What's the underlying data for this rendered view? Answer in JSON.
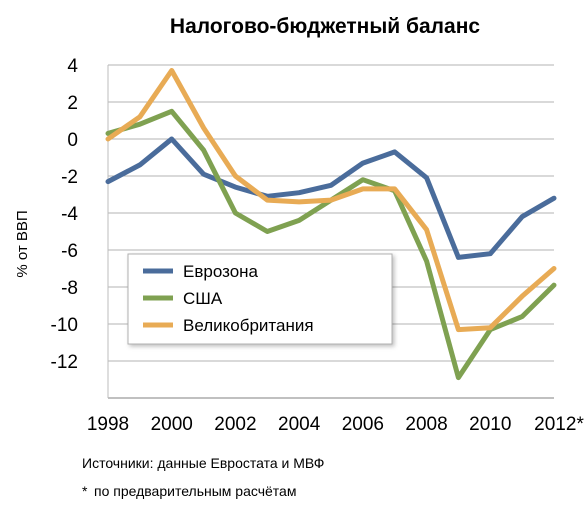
{
  "chart_data": {
    "type": "line",
    "title": "Налогово-бюджетный баланс",
    "xlabel": "",
    "ylabel": "% от ВВП",
    "x": [
      1998,
      1999,
      2000,
      2001,
      2002,
      2003,
      2004,
      2005,
      2006,
      2007,
      2008,
      2009,
      2010,
      2011,
      2012
    ],
    "x_tick_labels": [
      "1998",
      "2000",
      "2002",
      "2004",
      "2006",
      "2008",
      "2010",
      "2012*"
    ],
    "x_tick_values": [
      1998,
      2000,
      2002,
      2004,
      2006,
      2008,
      2010,
      2012
    ],
    "ylim": [
      -14,
      4
    ],
    "y_ticks": [
      4,
      2,
      0,
      -2,
      -4,
      -6,
      -8,
      -10,
      -12
    ],
    "grid": true,
    "legend_position": "inside-lower-left",
    "series": [
      {
        "name": "Еврозона",
        "color": "#4A6C9B",
        "values": [
          -2.3,
          -1.4,
          0.0,
          -1.9,
          -2.6,
          -3.1,
          -2.9,
          -2.5,
          -1.3,
          -0.7,
          -2.1,
          -6.4,
          -6.2,
          -4.2,
          -3.2
        ]
      },
      {
        "name": "США",
        "color": "#7FA151",
        "values": [
          0.3,
          0.8,
          1.5,
          -0.6,
          -4.0,
          -5.0,
          -4.4,
          -3.3,
          -2.2,
          -2.8,
          -6.6,
          -12.9,
          -10.3,
          -9.6,
          -7.9
        ]
      },
      {
        "name": "Великобритания",
        "color": "#E8AB55",
        "values": [
          0.0,
          1.2,
          3.7,
          0.6,
          -2.0,
          -3.3,
          -3.4,
          -3.3,
          -2.7,
          -2.7,
          -4.9,
          -10.3,
          -10.2,
          -8.5,
          -7.0
        ]
      }
    ]
  },
  "notes": {
    "source": "Источники: данные Евростата и МВФ",
    "asterisk": "*",
    "footnote": "по предварительным расчётам"
  }
}
